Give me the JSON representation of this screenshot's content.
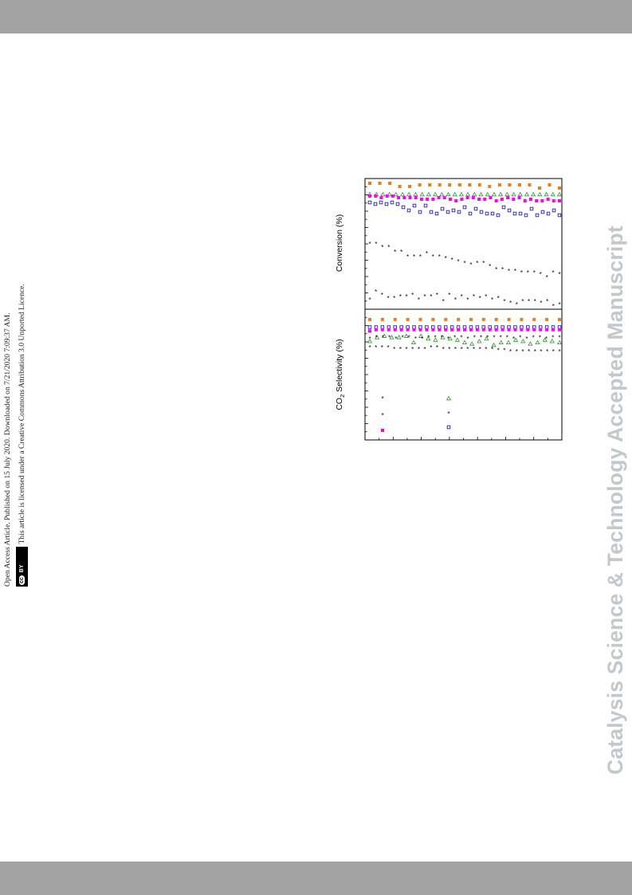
{
  "header_bar": {},
  "license": {
    "line1": "Open Access Article. Published on 15 July 2020. Downloaded on 7/21/2020 7:09:37 AM.",
    "badge_cc": "cc",
    "badge_by": "BY",
    "line2": "This article is licensed under a Creative Commons Attribution 3.0 Unported Licence."
  },
  "watermark": "Catalysis Science & Technology Accepted Manuscript",
  "chart_data": [
    {
      "type": "scatter",
      "ylabel": "Conversion (%)",
      "series": [
        {
          "color": "#f07d14",
          "marker": "square",
          "values": [
            99,
            99,
            99,
            97,
            97,
            98,
            98,
            98,
            98,
            98,
            98,
            98,
            97,
            98,
            98,
            98,
            98,
            96,
            98,
            96
          ]
        },
        {
          "color": "#22a022",
          "marker": "triangle",
          "values": [
            92,
            92,
            92,
            92,
            92,
            92,
            92,
            92,
            92,
            92,
            92,
            92,
            92,
            92,
            92,
            92,
            92,
            92,
            92,
            92,
            92,
            92,
            92,
            92,
            92,
            92,
            92,
            92,
            92,
            92
          ]
        },
        {
          "color": "#ff00ff",
          "marker": "square",
          "values": [
            91,
            91,
            90,
            91,
            91,
            90,
            90,
            90,
            90,
            89,
            89,
            89,
            90,
            90,
            89,
            88,
            89,
            90,
            90,
            89,
            89,
            90,
            88,
            89,
            90,
            89,
            90,
            88,
            89,
            88,
            88,
            89,
            88,
            88
          ]
        },
        {
          "color": "#1d1dd6",
          "marker": "open-square",
          "values": [
            87,
            86,
            87,
            86,
            87,
            86,
            84,
            82,
            85,
            81,
            85,
            81,
            80,
            83,
            81,
            82,
            81,
            84,
            80,
            83,
            81,
            80,
            80,
            79,
            84,
            82,
            80,
            80,
            79,
            83,
            79,
            81,
            80,
            82,
            79
          ]
        },
        {
          "color": "#000000",
          "marker": "star",
          "values": [
            61,
            61,
            59,
            59,
            56,
            56,
            53,
            53,
            53,
            55,
            53,
            53,
            52,
            51,
            50,
            49,
            48,
            49,
            49,
            47,
            45,
            45,
            44,
            44,
            43,
            43,
            43,
            42,
            40,
            43,
            42
          ]
        },
        {
          "color": "#000000",
          "marker": "star",
          "values": [
            26,
            31,
            29,
            27,
            27,
            28,
            28,
            29,
            26,
            28,
            28,
            29,
            25,
            29,
            26,
            28,
            26,
            28,
            27,
            28,
            26,
            27,
            25,
            24,
            23,
            25,
            25,
            25,
            24,
            25,
            22,
            23
          ]
        }
      ]
    },
    {
      "type": "scatter",
      "ylabel": "CO2 Selectivity (%)",
      "ylabel_main": "CO",
      "ylabel_sub": "2",
      "ylabel_rest": " Selectivity (%)",
      "series": [
        {
          "color": "#f07d14",
          "marker": "square",
          "values": [
            94,
            94,
            94,
            94,
            94,
            94,
            94,
            94,
            94,
            94,
            94,
            94,
            94,
            94,
            94,
            94
          ]
        },
        {
          "color": "#1d1dd6",
          "marker": "open-square",
          "values": [
            88,
            88,
            88,
            88,
            88,
            88,
            88,
            88,
            88,
            88,
            88,
            88,
            88,
            88,
            88,
            88,
            88,
            88,
            88,
            88,
            88,
            88,
            88,
            88,
            88,
            88,
            88,
            88,
            88,
            88,
            88
          ]
        },
        {
          "color": "#ff00ff",
          "marker": "square",
          "values": [
            85,
            86,
            86,
            86,
            86,
            86,
            86,
            86,
            86,
            86,
            86,
            86,
            86,
            86,
            86,
            86,
            86,
            86,
            86,
            86,
            86,
            86,
            86,
            86,
            86,
            86,
            86,
            86,
            86,
            86,
            86
          ]
        },
        {
          "color": "#22a022",
          "marker": "triangle",
          "values": [
            77,
            80,
            81,
            80,
            80,
            81,
            76,
            81,
            79,
            78,
            80,
            79,
            78,
            76,
            75,
            77,
            79,
            74,
            76,
            76,
            78,
            77,
            75,
            76,
            78,
            77,
            76
          ]
        },
        {
          "color": "#000000",
          "marker": "star",
          "values": [
            79,
            80,
            80,
            80,
            79,
            80,
            80,
            79,
            79,
            80,
            80,
            80,
            79,
            80,
            80,
            79,
            80,
            80,
            80,
            80,
            80,
            80,
            79,
            80,
            79,
            80,
            80,
            79,
            80,
            80
          ]
        },
        {
          "color": "#000000",
          "marker": "star",
          "values": [
            72,
            72,
            72,
            72,
            71,
            71,
            71,
            71,
            71,
            71,
            72,
            72,
            71,
            71,
            71,
            71,
            71,
            71,
            71,
            71,
            71,
            70,
            70,
            69,
            69,
            69,
            69,
            69,
            69,
            69,
            69,
            69
          ]
        }
      ]
    }
  ]
}
